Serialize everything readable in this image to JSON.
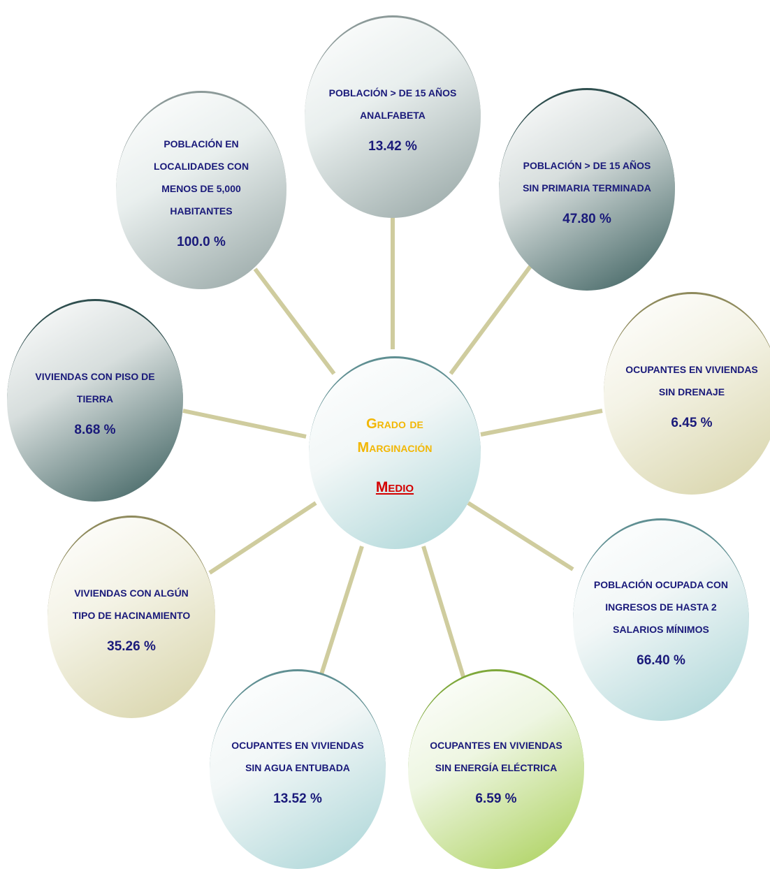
{
  "center": {
    "title_line1": "Grado de",
    "title_line2": "Marginación",
    "level": "Medio"
  },
  "nodes": [
    {
      "id": "analfabeta",
      "label": "POBLACIÓN > DE 15 AÑOS ANALFABETA",
      "value": "13.42 %"
    },
    {
      "id": "sin-primaria",
      "label": "POBLACIÓN > DE 15 AÑOS SIN PRIMARIA TERMINADA",
      "value": "47.80 %"
    },
    {
      "id": "sin-drenaje",
      "label": "OCUPANTES EN VIVIENDAS SIN DRENAJE",
      "value": "6.45 %"
    },
    {
      "id": "ingresos",
      "label": "POBLACIÓN OCUPADA CON INGRESOS DE HASTA 2 SALARIOS MÍNIMOS",
      "value": "66.40 %"
    },
    {
      "id": "sin-energia",
      "label": "OCUPANTES EN VIVIENDAS SIN ENERGÍA ELÉCTRICA",
      "value": "6.59 %"
    },
    {
      "id": "sin-agua",
      "label": "OCUPANTES EN VIVIENDAS SIN AGUA ENTUBADA",
      "value": "13.52 %"
    },
    {
      "id": "hacinamiento",
      "label": "VIVIENDAS CON ALGÚN TIPO DE HACINAMIENTO",
      "value": "35.26 %"
    },
    {
      "id": "piso-tierra",
      "label": "VIVIENDAS CON PISO DE TIERRA",
      "value": "8.68 %"
    },
    {
      "id": "localidades",
      "label": "POBLACIÓN EN LOCALIDADES CON MENOS DE 5,000 HABITANTES",
      "value": "100.0 %"
    }
  ],
  "colors": {
    "connector": "#cfcc9e",
    "label_text": "#1a1a7a",
    "center_title": "#f2b705",
    "center_level": "#d40000"
  }
}
